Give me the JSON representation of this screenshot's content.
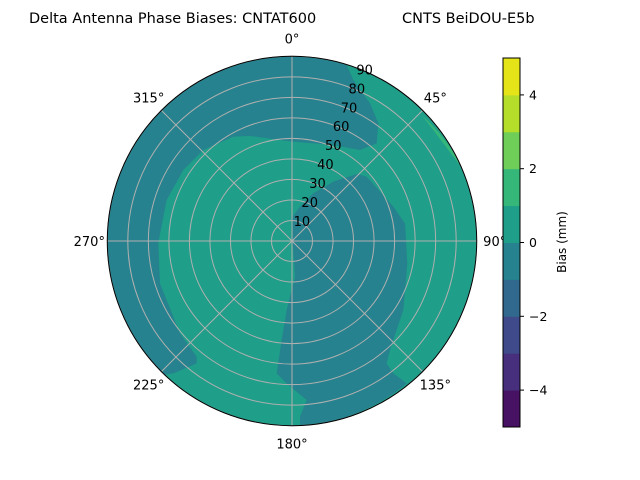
{
  "chart_data": {
    "type": "polar-contour",
    "title_left": "Delta Antenna Phase Biases: CNTAT600",
    "title_right": "CNTS BeiDOU-E5b",
    "theta_direction": "clockwise",
    "theta_zero": "top",
    "theta_ticks": [
      0,
      45,
      90,
      135,
      180,
      225,
      270,
      315
    ],
    "theta_tick_labels": [
      "0°",
      "45°",
      "90°",
      "135°",
      "180°",
      "225°",
      "270°",
      "315°"
    ],
    "r_range": [
      0,
      90
    ],
    "r_ticks": [
      10,
      20,
      30,
      40,
      50,
      60,
      70,
      80,
      90
    ],
    "r_tick_labels": [
      "10",
      "20",
      "30",
      "40",
      "50",
      "60",
      "70",
      "80",
      "90"
    ],
    "grid": true,
    "colorbar": {
      "label": "Bias (mm)",
      "levels": [
        -5,
        -4,
        -3,
        -2,
        -1,
        0,
        1,
        2,
        3,
        4,
        5
      ],
      "ticks": [
        -4,
        -2,
        0,
        2,
        4
      ],
      "tick_labels": [
        "−4",
        "−2",
        "0",
        "2",
        "4"
      ],
      "colormap": "viridis",
      "colors": [
        "#471164",
        "#472f7d",
        "#3e4a89",
        "#31688e",
        "#26828e",
        "#1f9e89",
        "#35b779",
        "#6ece58",
        "#b5de2b",
        "#e4e419"
      ]
    },
    "regions": [
      {
        "level_range": [
          0,
          1
        ],
        "description_area": "background / center-left and east"
      },
      {
        "level_range": [
          -1,
          0
        ],
        "description_area": "north, west rim, and southeast-center"
      },
      {
        "level_range": [
          1,
          2
        ],
        "description_area": "northeast rim near 45-60°"
      }
    ]
  }
}
